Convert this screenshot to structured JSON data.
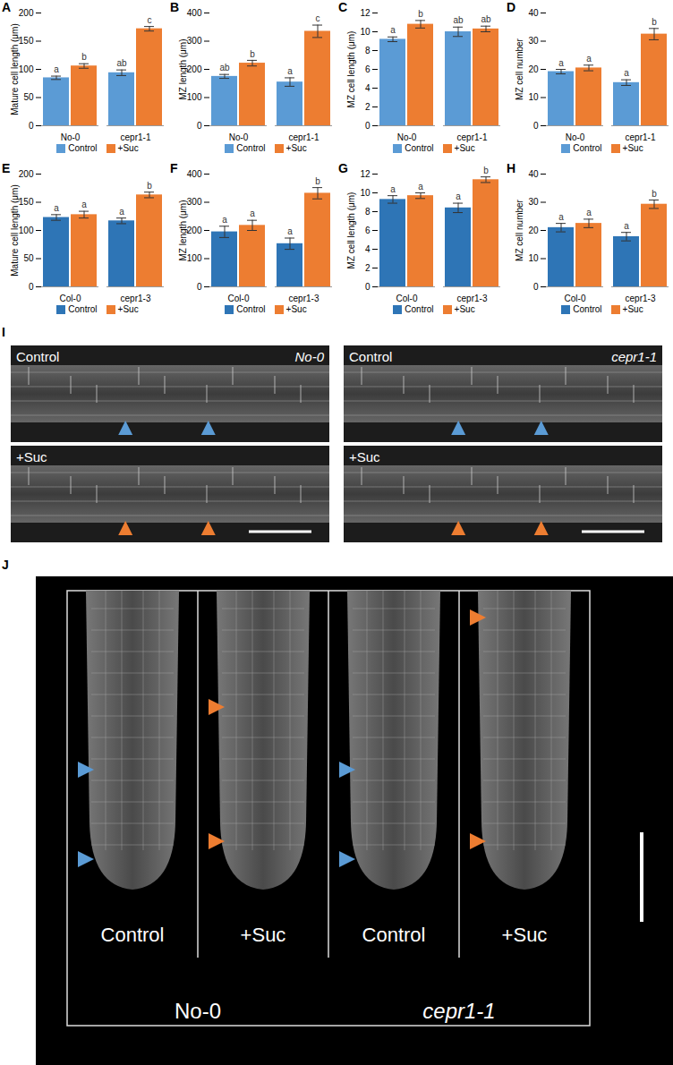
{
  "chart_data": [
    {
      "type": "bar",
      "title": "A",
      "ylabel": "Mature cell length (μm)",
      "categories": [
        "No-0",
        "cepr1-1"
      ],
      "series": [
        {
          "name": "Control",
          "color": "#5b9bd5",
          "values": [
            85,
            94
          ],
          "errors": [
            3,
            5
          ],
          "letters": [
            "a",
            "ab"
          ]
        },
        {
          "name": "+Suc",
          "color": "#ed7d31",
          "values": [
            106,
            172
          ],
          "errors": [
            4,
            4
          ],
          "letters": [
            "b",
            "c"
          ]
        }
      ],
      "ylim": [
        0,
        200
      ],
      "yticks": [
        0,
        50,
        100,
        150,
        200
      ],
      "legend": "bottom"
    },
    {
      "type": "bar",
      "title": "B",
      "ylabel": "MZ length (μm)",
      "categories": [
        "No-0",
        "cepr1-1"
      ],
      "series": [
        {
          "name": "Control",
          "color": "#5b9bd5",
          "values": [
            175,
            155
          ],
          "errors": [
            7,
            15
          ],
          "letters": [
            "ab",
            "a"
          ]
        },
        {
          "name": "+Suc",
          "color": "#ed7d31",
          "values": [
            222,
            335
          ],
          "errors": [
            10,
            22
          ],
          "letters": [
            "b",
            "c"
          ]
        }
      ],
      "ylim": [
        0,
        400
      ],
      "yticks": [
        0,
        100,
        200,
        300,
        400
      ],
      "legend": "bottom"
    },
    {
      "type": "bar",
      "title": "C",
      "ylabel": "MZ cell length (μm)",
      "categories": [
        "No-0",
        "cepr1-1"
      ],
      "series": [
        {
          "name": "Control",
          "color": "#5b9bd5",
          "values": [
            9.2,
            10.0
          ],
          "errors": [
            0.25,
            0.5
          ],
          "letters": [
            "a",
            "ab"
          ]
        },
        {
          "name": "+Suc",
          "color": "#ed7d31",
          "values": [
            10.8,
            10.3
          ],
          "errors": [
            0.4,
            0.3
          ],
          "letters": [
            "b",
            "ab"
          ]
        }
      ],
      "ylim": [
        0,
        12
      ],
      "yticks": [
        0,
        2,
        4,
        6,
        8,
        10,
        12
      ],
      "legend": "bottom"
    },
    {
      "type": "bar",
      "title": "D",
      "ylabel": "MZ cell number",
      "categories": [
        "No-0",
        "cepr1-1"
      ],
      "series": [
        {
          "name": "Control",
          "color": "#5b9bd5",
          "values": [
            19.2,
            15.3
          ],
          "errors": [
            0.8,
            1
          ],
          "letters": [
            "a",
            "a"
          ]
        },
        {
          "name": "+Suc",
          "color": "#ed7d31",
          "values": [
            20.5,
            32.5
          ],
          "errors": [
            1,
            2
          ],
          "letters": [
            "a",
            "b"
          ]
        }
      ],
      "ylim": [
        0,
        40
      ],
      "yticks": [
        0,
        10,
        20,
        30,
        40
      ],
      "legend": "bottom"
    },
    {
      "type": "bar",
      "title": "E",
      "ylabel": "Mature cell length (μm)",
      "categories": [
        "Col-0",
        "cepr1-3"
      ],
      "series": [
        {
          "name": "Control",
          "color": "#2e75b6",
          "values": [
            123,
            117
          ],
          "errors": [
            5,
            5
          ],
          "letters": [
            "a",
            "a"
          ]
        },
        {
          "name": "+Suc",
          "color": "#ed7d31",
          "values": [
            128,
            163
          ],
          "errors": [
            6,
            5
          ],
          "letters": [
            "a",
            "b"
          ]
        }
      ],
      "ylim": [
        0,
        200
      ],
      "yticks": [
        0,
        50,
        100,
        150,
        200
      ],
      "legend": "bottom"
    },
    {
      "type": "bar",
      "title": "F",
      "ylabel": "MZ length (μm)",
      "categories": [
        "Col-0",
        "cepr1-3"
      ],
      "series": [
        {
          "name": "Control",
          "color": "#2e75b6",
          "values": [
            195,
            153
          ],
          "errors": [
            20,
            20
          ],
          "letters": [
            "a",
            "a"
          ]
        },
        {
          "name": "+Suc",
          "color": "#ed7d31",
          "values": [
            218,
            332
          ],
          "errors": [
            18,
            20
          ],
          "letters": [
            "a",
            "b"
          ]
        }
      ],
      "ylim": [
        0,
        400
      ],
      "yticks": [
        0,
        100,
        200,
        300,
        400
      ],
      "legend": "bottom"
    },
    {
      "type": "bar",
      "title": "G",
      "ylabel": "MZ cell length (μm)",
      "categories": [
        "Col-0",
        "cepr1-3"
      ],
      "series": [
        {
          "name": "Control",
          "color": "#2e75b6",
          "values": [
            9.3,
            8.4
          ],
          "errors": [
            0.4,
            0.5
          ],
          "letters": [
            "a",
            "a"
          ]
        },
        {
          "name": "+Suc",
          "color": "#ed7d31",
          "values": [
            9.7,
            11.4
          ],
          "errors": [
            0.3,
            0.3
          ],
          "letters": [
            "a",
            "b"
          ]
        }
      ],
      "ylim": [
        0,
        12
      ],
      "yticks": [
        0,
        2,
        4,
        6,
        8,
        10,
        12
      ],
      "legend": "bottom"
    },
    {
      "type": "bar",
      "title": "H",
      "ylabel": "MZ cell number",
      "categories": [
        "Col-0",
        "cepr1-3"
      ],
      "series": [
        {
          "name": "Control",
          "color": "#2e75b6",
          "values": [
            21,
            17.8
          ],
          "errors": [
            1.5,
            1.5
          ],
          "letters": [
            "a",
            "a"
          ]
        },
        {
          "name": "+Suc",
          "color": "#ed7d31",
          "values": [
            22.5,
            29.3
          ],
          "errors": [
            1.5,
            1.5
          ],
          "letters": [
            "a",
            "b"
          ]
        }
      ],
      "ylim": [
        0,
        40
      ],
      "yticks": [
        0,
        10,
        20,
        30,
        40
      ],
      "legend": "bottom"
    }
  ],
  "image_panels": [
    {
      "title": "I",
      "groups": [
        {
          "genotype": "No-0",
          "labels": [
            "Control",
            "+Suc"
          ]
        },
        {
          "genotype": "cepr1-1",
          "labels": [
            "Control",
            "+Suc"
          ]
        }
      ]
    },
    {
      "title": "J",
      "groups": [
        {
          "genotype": "No-0",
          "labels": [
            "Control",
            "+Suc"
          ]
        },
        {
          "genotype": "cepr1-1",
          "labels": [
            "Control",
            "+Suc"
          ]
        }
      ]
    }
  ]
}
